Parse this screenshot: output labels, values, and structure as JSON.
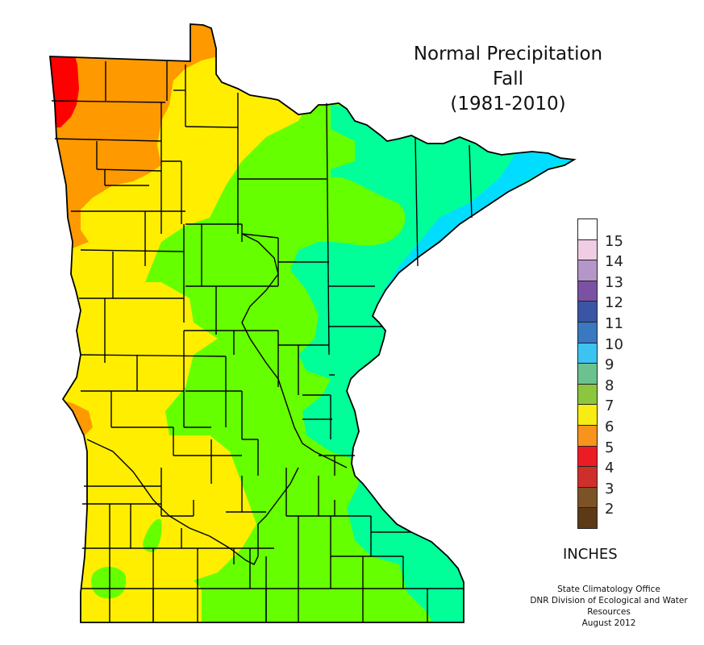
{
  "title": {
    "line1": "Normal Precipitation",
    "line2": "Fall",
    "line3": "(1981-2010)"
  },
  "legend": {
    "unit": "INCHES",
    "bins": [
      {
        "label": "15",
        "color": "#ffffff"
      },
      {
        "label": "14",
        "color": "#f0cde3"
      },
      {
        "label": "13",
        "color": "#b496c8"
      },
      {
        "label": "12",
        "color": "#7b52a3"
      },
      {
        "label": "11",
        "color": "#3a55a4"
      },
      {
        "label": "10",
        "color": "#3a78c2"
      },
      {
        "label": "9",
        "color": "#3dc3ef"
      },
      {
        "label": "8",
        "color": "#6cc28f"
      },
      {
        "label": "7",
        "color": "#8cc63f"
      },
      {
        "label": "6",
        "color": "#f7ec13"
      },
      {
        "label": "5",
        "color": "#f7941d"
      },
      {
        "label": "4",
        "color": "#ec1c24"
      },
      {
        "label": "3",
        "color": "#cf2f2a"
      },
      {
        "label": "2",
        "color": "#7b5326"
      },
      {
        "label": "",
        "color": "#5c3a17"
      }
    ]
  },
  "map": {
    "region": "Minnesota",
    "fill_colors": {
      "4-5": "#ff0000",
      "5-6": "#ff9900",
      "6-7": "#ffee00",
      "7-8": "#66ff00",
      "8-9": "#00ff99",
      "9-10": "#00ddff"
    }
  },
  "credit": {
    "line1": "State Climatology Office",
    "line2": "DNR Division of Ecological and Water Resources",
    "line3": "August 2012"
  }
}
